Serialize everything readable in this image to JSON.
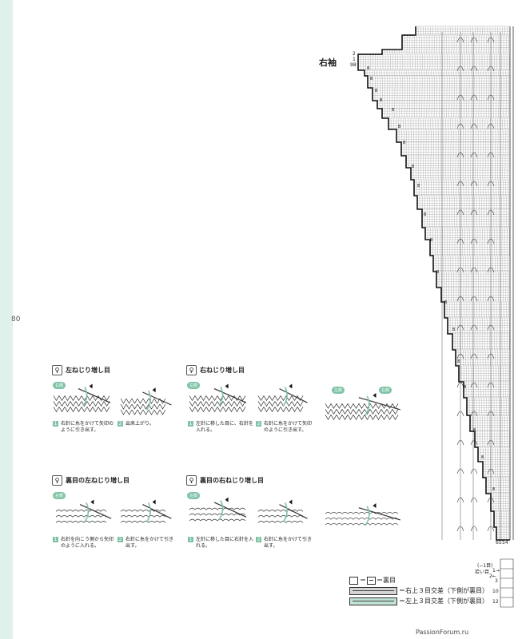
{
  "page_number": "80",
  "chart_title": "右袖",
  "row_labels": {
    "top": "2",
    "mid": "1",
    "bottom": "98"
  },
  "bottom_labels": {
    "row_a": "65",
    "row_b": "54",
    "dec_note_1": "(−1目)",
    "dec_note_2": "拾い目",
    "arrow1": "1→",
    "arrow2": "2←",
    "n3": "3",
    "n10": "10",
    "n12": "12"
  },
  "motif_marks": [
    "8",
    "8",
    "8",
    "8",
    "8",
    "8",
    "8",
    "8",
    "8",
    "8",
    "8",
    "8",
    "8",
    "8",
    "8",
    "8",
    "8",
    "8",
    "8"
  ],
  "legend": {
    "purl": "＝裏目",
    "right_cross": "＝右上３目交差（下側が裏目）",
    "left_cross": "＝左上３目交差（下側が裏目）"
  },
  "sections": [
    {
      "title": "左ねじり増し目",
      "side_tag": "右側",
      "steps": [
        {
          "num": "1",
          "text": "右針に糸をかけて矢印のように引き出す。"
        },
        {
          "num": "2",
          "text": "出来上がり。"
        }
      ]
    },
    {
      "title": "右ねじり増し目",
      "side_tag": "左側",
      "tag2": "左側",
      "tag3": "右側",
      "steps": [
        {
          "num": "1",
          "text": "左針に移した目に、右針を入れる。"
        },
        {
          "num": "2",
          "text": "右針に糸をかけて矢印のように引き出す。"
        }
      ]
    },
    {
      "title": "裏目の左ねじり増し目",
      "side_tag": "右側",
      "steps": [
        {
          "num": "1",
          "text": "右針を向こう側から矢印のように入れる。"
        },
        {
          "num": "2",
          "text": "右針に糸をかけて引き出す。"
        }
      ]
    },
    {
      "title": "裏目の右ねじり増し目",
      "side_tag": "左側",
      "steps": [
        {
          "num": "1",
          "text": "左針に移した目に右針を入れる。"
        },
        {
          "num": "2",
          "text": "右針に糸をかけて引き出す。"
        }
      ]
    }
  ],
  "watermark": "PassionForum.ru",
  "colors": {
    "accent": "#7fc3a6",
    "band": "#dff1ea"
  }
}
